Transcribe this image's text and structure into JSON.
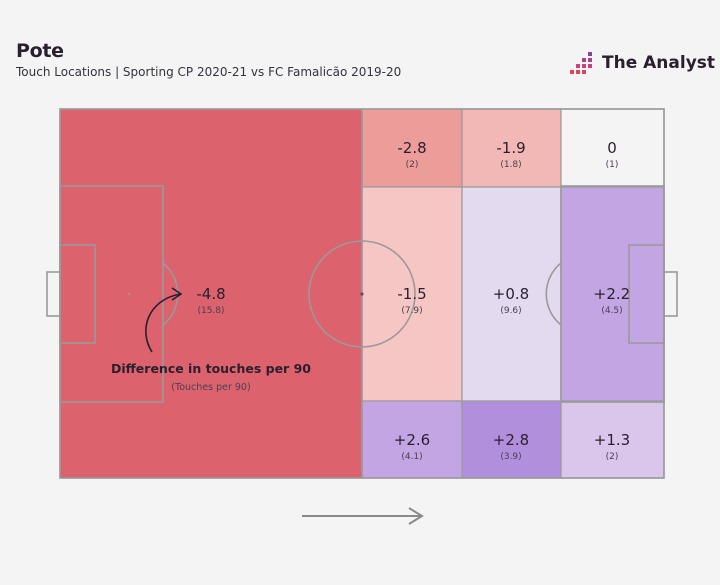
{
  "header": {
    "title": "Pote",
    "subtitle": "Touch Locations | Sporting CP 2020-21 vs FC Famalicão 2019-20",
    "brand": "The Analyst"
  },
  "legend": {
    "main": "Difference in touches per 90",
    "sub": "(Touches per 90)"
  },
  "colors": {
    "negative_strong": "#dc626d",
    "negative_medium": "#ec9d99",
    "negative_light": "#f2b8b6",
    "negative_lighter": "#f5c6c4",
    "neutral": "#f4f4f4",
    "positive_light": "#e4daf0",
    "positive_medium": "#d9c6ea",
    "positive_strong": "#c2a5e2",
    "positive_stronger": "#b28fdd",
    "line": "#9a9a9a",
    "brand_pink": "#e0455f",
    "brand_purple": "#8a3fa0"
  },
  "chart_data": {
    "type": "heatmap",
    "title": "Pote",
    "subtitle": "Touch Locations | Sporting CP 2020-21 vs FC Famalicão 2019-20",
    "legend": "Difference in touches per 90",
    "legend_sub": "(Touches per 90)",
    "direction_of_play": "left-to-right",
    "zones": [
      {
        "zone": "own-half",
        "diff": "-4.8",
        "touches": "(15.8)",
        "diff_value": -4.8,
        "touches_value": 15.8
      },
      {
        "zone": "middle-third-left",
        "diff": "-2.8",
        "touches": "(2)",
        "diff_value": -2.8,
        "touches_value": 2
      },
      {
        "zone": "middle-third-center",
        "diff": "-1.5",
        "touches": "(7.9)",
        "diff_value": -1.5,
        "touches_value": 7.9
      },
      {
        "zone": "middle-third-right",
        "diff": "+2.6",
        "touches": "(4.1)",
        "diff_value": 2.6,
        "touches_value": 4.1
      },
      {
        "zone": "attacking-third-left",
        "diff": "-1.9",
        "touches": "(1.8)",
        "diff_value": -1.9,
        "touches_value": 1.8
      },
      {
        "zone": "attacking-third-center",
        "diff": "+0.8",
        "touches": "(9.6)",
        "diff_value": 0.8,
        "touches_value": 9.6
      },
      {
        "zone": "attacking-third-right",
        "diff": "+2.8",
        "touches": "(3.9)",
        "diff_value": 2.8,
        "touches_value": 3.9
      },
      {
        "zone": "final-third-left",
        "diff": "0",
        "touches": "(1)",
        "diff_value": 0,
        "touches_value": 1
      },
      {
        "zone": "final-third-center",
        "diff": "+2.2",
        "touches": "(4.5)",
        "diff_value": 2.2,
        "touches_value": 4.5
      },
      {
        "zone": "final-third-right",
        "diff": "+1.3",
        "touches": "(2)",
        "diff_value": 1.3,
        "touches_value": 2
      }
    ]
  }
}
